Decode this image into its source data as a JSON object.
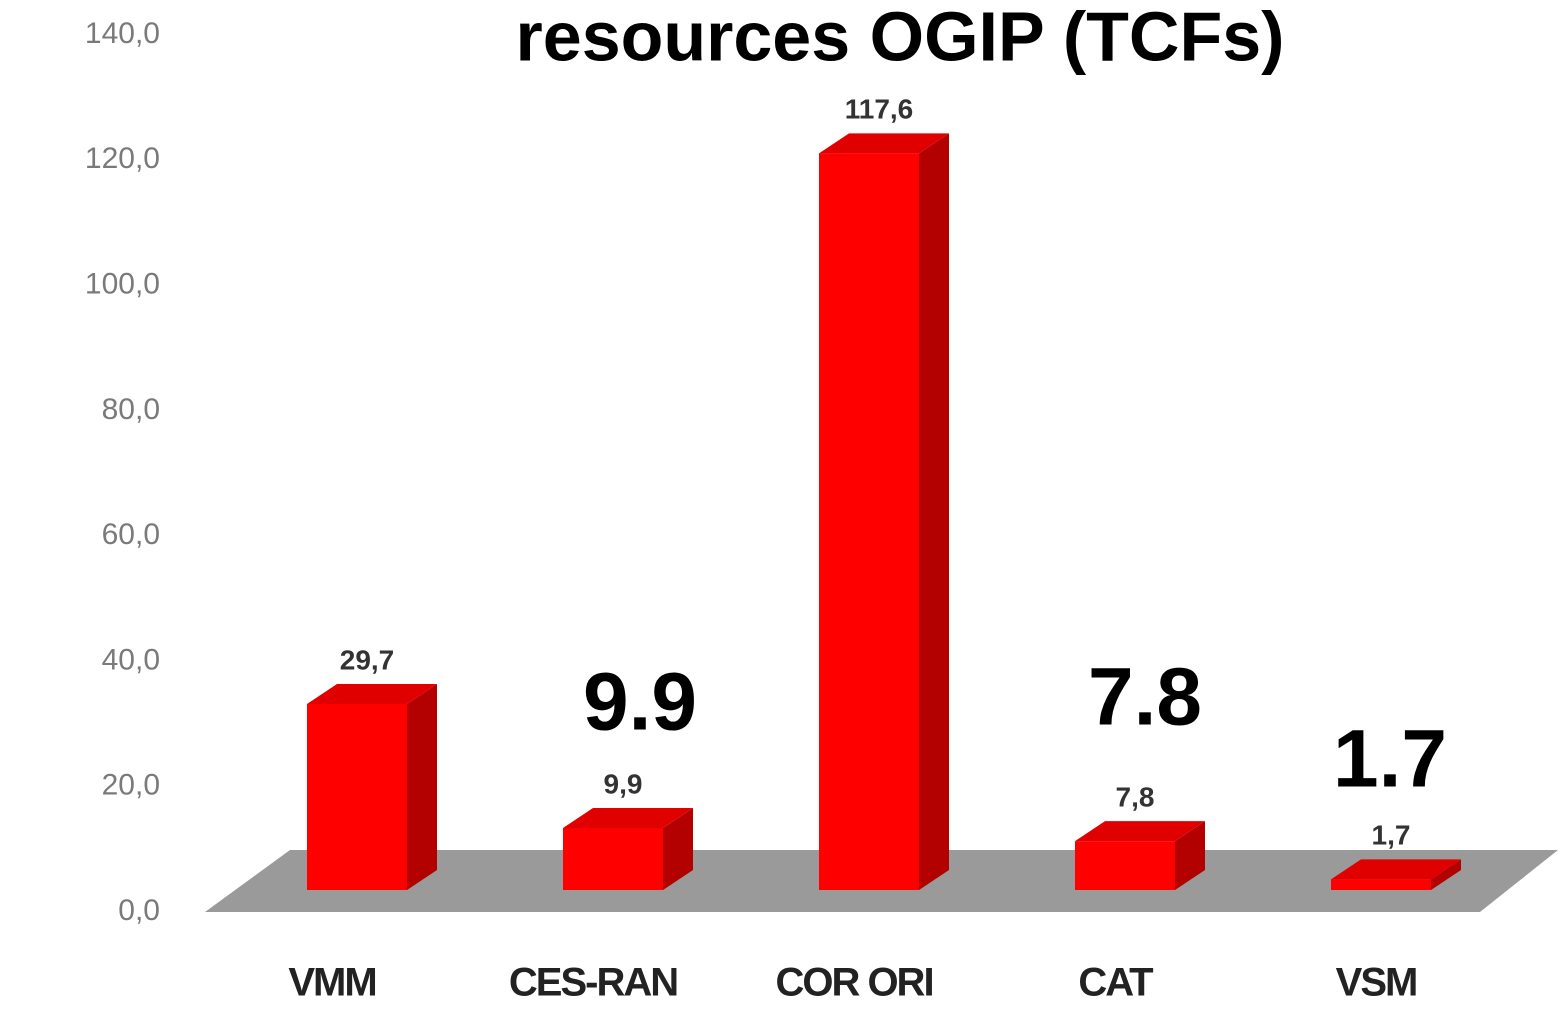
{
  "chart_data": {
    "type": "bar3d",
    "title": "resources OGIP (TCFs)",
    "categories": [
      "VMM",
      "CES-RAN",
      "COR ORI",
      "CAT",
      "VSM"
    ],
    "values": [
      29.7,
      9.9,
      117.6,
      7.8,
      1.7
    ],
    "value_labels": [
      "29,7",
      "9,9",
      "117,6",
      "7,8",
      "1,7"
    ],
    "color": "#ff0000",
    "ylim": [
      0,
      140
    ],
    "yticks": [
      {
        "value": 0,
        "label": "0,0"
      },
      {
        "value": 20,
        "label": "20,0"
      },
      {
        "value": 40,
        "label": "40,0"
      },
      {
        "value": 60,
        "label": "60,0"
      },
      {
        "value": 80,
        "label": "80,0"
      },
      {
        "value": 100,
        "label": "100,0"
      },
      {
        "value": 120,
        "label": "120,0"
      },
      {
        "value": 140,
        "label": "140,0"
      }
    ],
    "annotations": [
      "9.9",
      "7.8",
      "1.7"
    ]
  }
}
